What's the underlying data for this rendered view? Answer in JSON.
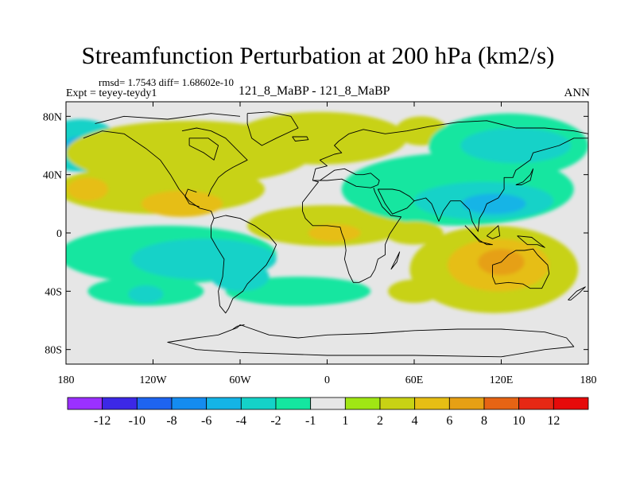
{
  "chart_data": {
    "type": "contour-map",
    "title": "Streamfunction Perturbation at 200 hPa (km2/s)",
    "stats_text": "rmsd= 1.7543 diff= 1.68602e-10",
    "experiment_label": "Expt = teyey-teydy1",
    "case_label": "121_8_MaBP - 121_8_MaBP",
    "season": "ANN",
    "x_axis": {
      "range": [
        -180,
        180
      ],
      "ticks": [
        {
          "value": -180,
          "label": "180"
        },
        {
          "value": -120,
          "label": "120W"
        },
        {
          "value": -60,
          "label": "60W"
        },
        {
          "value": 0,
          "label": "0"
        },
        {
          "value": 60,
          "label": "60E"
        },
        {
          "value": 120,
          "label": "120E"
        },
        {
          "value": 180,
          "label": "180"
        }
      ]
    },
    "y_axis": {
      "range": [
        -90,
        90
      ],
      "ticks": [
        {
          "value": 80,
          "label": "80N"
        },
        {
          "value": 40,
          "label": "40N"
        },
        {
          "value": 0,
          "label": "0"
        },
        {
          "value": -40,
          "label": "40S"
        },
        {
          "value": -80,
          "label": "80S"
        }
      ]
    },
    "colorbar": {
      "labels": [
        "-12",
        "-10",
        "-8",
        "-6",
        "-4",
        "-2",
        "-1",
        "1",
        "2",
        "4",
        "6",
        "8",
        "10",
        "12"
      ],
      "colors": [
        "#9b30ff",
        "#3c28e6",
        "#1e64f0",
        "#148cf0",
        "#14b4e6",
        "#14d2c8",
        "#14e6a0",
        "#e6e6e6",
        "#a0e614",
        "#c8d214",
        "#e6be14",
        "#e6a014",
        "#e66414",
        "#e62814",
        "#e60a0a"
      ]
    },
    "anomalies": [
      {
        "lon": -170,
        "lat": 60,
        "rx": 28,
        "ry": 18,
        "value": -4
      },
      {
        "lon": -172,
        "lat": 58,
        "rx": 10,
        "ry": 8,
        "value": -6
      },
      {
        "lon": -95,
        "lat": 55,
        "rx": 85,
        "ry": 22,
        "value": 2
      },
      {
        "lon": -115,
        "lat": 30,
        "rx": 72,
        "ry": 17,
        "value": 2
      },
      {
        "lon": -100,
        "lat": 20,
        "rx": 28,
        "ry": 9,
        "value": 4
      },
      {
        "lon": -165,
        "lat": 30,
        "rx": 14,
        "ry": 8,
        "value": 4
      },
      {
        "lon": 0,
        "lat": 5,
        "rx": 55,
        "ry": 14,
        "value": 2
      },
      {
        "lon": 5,
        "lat": 0,
        "rx": 18,
        "ry": 6,
        "value": 4
      },
      {
        "lon": -5,
        "lat": 65,
        "rx": 60,
        "ry": 18,
        "value": 2
      },
      {
        "lon": 65,
        "lat": 70,
        "rx": 18,
        "ry": 10,
        "value": 2
      },
      {
        "lon": 90,
        "lat": 30,
        "rx": 80,
        "ry": 25,
        "value": -2
      },
      {
        "lon": 108,
        "lat": 22,
        "rx": 48,
        "ry": 13,
        "value": -4
      },
      {
        "lon": 115,
        "lat": 20,
        "rx": 22,
        "ry": 7,
        "value": -6
      },
      {
        "lon": 125,
        "lat": 60,
        "rx": 55,
        "ry": 22,
        "value": -2
      },
      {
        "lon": 130,
        "lat": 60,
        "rx": 38,
        "ry": 12,
        "value": -4
      },
      {
        "lon": -110,
        "lat": -15,
        "rx": 75,
        "ry": 20,
        "value": -2
      },
      {
        "lon": -85,
        "lat": -18,
        "rx": 50,
        "ry": 14,
        "value": -4
      },
      {
        "lon": -125,
        "lat": -40,
        "rx": 40,
        "ry": 10,
        "value": -2
      },
      {
        "lon": -125,
        "lat": -42,
        "rx": 12,
        "ry": 6,
        "value": -4
      },
      {
        "lon": -20,
        "lat": -40,
        "rx": 50,
        "ry": 10,
        "value": -2
      },
      {
        "lon": 115,
        "lat": -25,
        "rx": 58,
        "ry": 30,
        "value": 2
      },
      {
        "lon": 118,
        "lat": -22,
        "rx": 35,
        "ry": 18,
        "value": 4
      },
      {
        "lon": 120,
        "lat": -20,
        "rx": 16,
        "ry": 9,
        "value": 6
      },
      {
        "lon": 60,
        "lat": -40,
        "rx": 18,
        "ry": 8,
        "value": 2
      },
      {
        "lon": -60,
        "lat": -30,
        "rx": 20,
        "ry": 10,
        "value": -4
      },
      {
        "lon": 60,
        "lat": 0,
        "rx": 20,
        "ry": 8,
        "value": 2
      }
    ],
    "map_outline_segments": [
      [
        [
          -160,
          75
        ],
        [
          -140,
          80
        ],
        [
          -110,
          78
        ],
        [
          -80,
          82
        ],
        [
          -60,
          80
        ]
      ],
      [
        [
          -168,
          65
        ],
        [
          -155,
          70
        ],
        [
          -140,
          68
        ],
        [
          -125,
          58
        ],
        [
          -115,
          50
        ],
        [
          -108,
          40
        ],
        [
          -102,
          30
        ],
        [
          -95,
          22
        ],
        [
          -88,
          17
        ],
        [
          -80,
          15
        ],
        [
          -78,
          10
        ]
      ],
      [
        [
          -95,
          60
        ],
        [
          -85,
          55
        ],
        [
          -78,
          50
        ],
        [
          -75,
          60
        ],
        [
          -82,
          65
        ],
        [
          -95,
          65
        ],
        [
          -95,
          60
        ]
      ],
      [
        [
          -100,
          70
        ],
        [
          -90,
          72
        ],
        [
          -80,
          70
        ],
        [
          -70,
          65
        ],
        [
          -60,
          55
        ],
        [
          -55,
          50
        ],
        [
          -65,
          45
        ],
        [
          -70,
          42
        ],
        [
          -75,
          38
        ],
        [
          -80,
          30
        ],
        [
          -82,
          25
        ]
      ],
      [
        [
          -90,
          28
        ],
        [
          -96,
          30
        ],
        [
          -98,
          25
        ],
        [
          -95,
          20
        ],
        [
          -88,
          18
        ]
      ],
      [
        [
          -55,
          82
        ],
        [
          -40,
          83
        ],
        [
          -25,
          80
        ],
        [
          -20,
          72
        ],
        [
          -35,
          65
        ],
        [
          -45,
          60
        ],
        [
          -52,
          65
        ],
        [
          -55,
          75
        ],
        [
          -55,
          82
        ]
      ],
      [
        [
          -24,
          66
        ],
        [
          -14,
          66
        ],
        [
          -13,
          64
        ],
        [
          -22,
          63
        ],
        [
          -24,
          66
        ]
      ],
      [
        [
          -78,
          10
        ],
        [
          -70,
          12
        ],
        [
          -60,
          10
        ],
        [
          -50,
          5
        ],
        [
          -40,
          -2
        ],
        [
          -35,
          -8
        ],
        [
          -38,
          -15
        ],
        [
          -42,
          -22
        ],
        [
          -48,
          -28
        ],
        [
          -55,
          -35
        ],
        [
          -58,
          -40
        ],
        [
          -65,
          -45
        ],
        [
          -68,
          -52
        ],
        [
          -70,
          -55
        ],
        [
          -74,
          -50
        ],
        [
          -75,
          -40
        ],
        [
          -72,
          -30
        ],
        [
          -71,
          -18
        ],
        [
          -76,
          -10
        ],
        [
          -80,
          -3
        ],
        [
          -80,
          5
        ],
        [
          -78,
          10
        ]
      ],
      [
        [
          -10,
          36
        ],
        [
          -8,
          44
        ],
        [
          0,
          46
        ],
        [
          -5,
          50
        ],
        [
          5,
          54
        ],
        [
          10,
          55
        ],
        [
          5,
          60
        ],
        [
          8,
          63
        ],
        [
          15,
          68
        ],
        [
          25,
          71
        ],
        [
          40,
          68
        ],
        [
          55,
          70
        ],
        [
          70,
          73
        ],
        [
          90,
          76
        ],
        [
          110,
          77
        ],
        [
          130,
          72
        ],
        [
          150,
          72
        ],
        [
          170,
          70
        ],
        [
          180,
          68
        ]
      ],
      [
        [
          -10,
          36
        ],
        [
          0,
          36
        ],
        [
          10,
          37
        ],
        [
          20,
          32
        ],
        [
          30,
          31
        ],
        [
          35,
          33
        ],
        [
          36,
          36
        ],
        [
          30,
          41
        ],
        [
          25,
          40
        ],
        [
          20,
          40
        ],
        [
          12,
          44
        ],
        [
          5,
          43
        ],
        [
          -5,
          36
        ],
        [
          -10,
          36
        ]
      ],
      [
        [
          -17,
          21
        ],
        [
          -17,
          15
        ],
        [
          -15,
          10
        ],
        [
          -10,
          5
        ],
        [
          0,
          5
        ],
        [
          9,
          4
        ],
        [
          10,
          0
        ],
        [
          12,
          -5
        ],
        [
          13,
          -12
        ],
        [
          12,
          -18
        ],
        [
          15,
          -28
        ],
        [
          18,
          -34
        ],
        [
          22,
          -34
        ],
        [
          30,
          -30
        ],
        [
          33,
          -25
        ],
        [
          35,
          -18
        ],
        [
          40,
          -15
        ],
        [
          40,
          -8
        ],
        [
          43,
          -1
        ],
        [
          51,
          11
        ],
        [
          44,
          12
        ],
        [
          38,
          18
        ],
        [
          33,
          28
        ],
        [
          32,
          31
        ]
      ],
      [
        [
          -17,
          21
        ],
        [
          -10,
          30
        ],
        [
          -6,
          35
        ],
        [
          -10,
          36
        ]
      ],
      [
        [
          44,
          -25
        ],
        [
          48,
          -20
        ],
        [
          50,
          -13
        ],
        [
          49,
          -15
        ],
        [
          44,
          -25
        ]
      ],
      [
        [
          35,
          30
        ],
        [
          45,
          30
        ],
        [
          50,
          29
        ],
        [
          57,
          25
        ],
        [
          60,
          22
        ],
        [
          55,
          17
        ],
        [
          45,
          13
        ],
        [
          40,
          20
        ],
        [
          35,
          30
        ]
      ],
      [
        [
          60,
          22
        ],
        [
          68,
          24
        ],
        [
          72,
          20
        ],
        [
          77,
          8
        ],
        [
          80,
          15
        ],
        [
          85,
          22
        ],
        [
          92,
          22
        ],
        [
          98,
          16
        ],
        [
          100,
          8
        ],
        [
          104,
          1
        ],
        [
          105,
          10
        ],
        [
          108,
          15
        ],
        [
          110,
          20
        ],
        [
          118,
          24
        ],
        [
          122,
          30
        ],
        [
          122,
          38
        ],
        [
          128,
          38
        ],
        [
          130,
          43
        ],
        [
          140,
          50
        ],
        [
          142,
          55
        ],
        [
          160,
          60
        ],
        [
          170,
          65
        ],
        [
          180,
          65
        ]
      ],
      [
        [
          130,
          33
        ],
        [
          135,
          35
        ],
        [
          140,
          40
        ],
        [
          142,
          44
        ],
        [
          140,
          36
        ],
        [
          134,
          33
        ],
        [
          130,
          33
        ]
      ],
      [
        [
          95,
          5
        ],
        [
          105,
          -5
        ],
        [
          110,
          -8
        ],
        [
          114,
          -8
        ],
        [
          105,
          -6
        ],
        [
          97,
          3
        ],
        [
          95,
          5
        ]
      ],
      [
        [
          110,
          -2
        ],
        [
          118,
          5
        ],
        [
          119,
          -2
        ],
        [
          114,
          -4
        ],
        [
          110,
          -2
        ]
      ],
      [
        [
          114,
          -22
        ],
        [
          114,
          -30
        ],
        [
          116,
          -35
        ],
        [
          125,
          -34
        ],
        [
          135,
          -35
        ],
        [
          140,
          -38
        ],
        [
          148,
          -38
        ],
        [
          153,
          -28
        ],
        [
          152,
          -22
        ],
        [
          145,
          -15
        ],
        [
          142,
          -11
        ],
        [
          136,
          -12
        ],
        [
          130,
          -12
        ],
        [
          125,
          -15
        ],
        [
          120,
          -20
        ],
        [
          114,
          -22
        ]
      ],
      [
        [
          131,
          -2
        ],
        [
          141,
          -3
        ],
        [
          150,
          -10
        ],
        [
          145,
          -8
        ],
        [
          138,
          -8
        ],
        [
          131,
          -2
        ]
      ],
      [
        [
          166,
          -46
        ],
        [
          172,
          -40
        ],
        [
          178,
          -37
        ],
        [
          174,
          -41
        ],
        [
          168,
          -46
        ],
        [
          166,
          -46
        ]
      ],
      [
        [
          -60,
          -63
        ],
        [
          -40,
          -70
        ],
        [
          -20,
          -72
        ],
        [
          0,
          -70
        ],
        [
          30,
          -69
        ],
        [
          60,
          -67
        ],
        [
          90,
          -66
        ],
        [
          120,
          -66
        ],
        [
          150,
          -68
        ],
        [
          165,
          -72
        ],
        [
          170,
          -78
        ],
        [
          150,
          -80
        ],
        [
          120,
          -85
        ],
        [
          60,
          -84
        ],
        [
          0,
          -84
        ],
        [
          -60,
          -82
        ],
        [
          -90,
          -80
        ],
        [
          -110,
          -75
        ],
        [
          -90,
          -72
        ],
        [
          -75,
          -70
        ],
        [
          -62,
          -65
        ],
        [
          -60,
          -63
        ]
      ],
      [
        [
          -57,
          -63
        ],
        [
          -62,
          -64
        ],
        [
          -65,
          -66
        ]
      ]
    ]
  }
}
